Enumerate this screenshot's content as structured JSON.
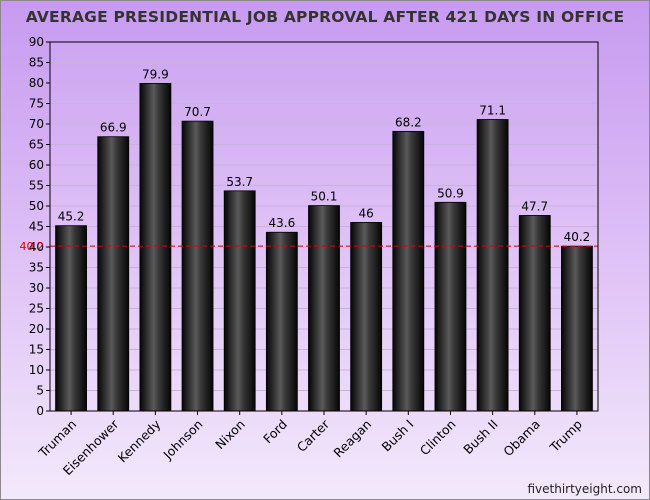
{
  "title": "AVERAGE PRESIDENTIAL JOB APPROVAL AFTER 421 DAYS IN OFFICE",
  "source": "fivethirtyeight.com",
  "colors": {
    "bar": "#1a1a1a",
    "reference_line": "#dd0000",
    "background_top": "#c79af0",
    "background_bottom": "#f3e9fb"
  },
  "chart_data": {
    "type": "bar",
    "title": "AVERAGE PRESIDENTIAL JOB APPROVAL AFTER 421 DAYS IN OFFICE",
    "xlabel": "",
    "ylabel": "",
    "ylim": [
      0,
      90
    ],
    "yticks": [
      0,
      5,
      10,
      15,
      20,
      25,
      30,
      35,
      40,
      45,
      50,
      55,
      60,
      65,
      70,
      75,
      80,
      85,
      90
    ],
    "categories": [
      "Truman",
      "Eisenhower",
      "Kennedy",
      "Johnson",
      "Nixon",
      "Ford",
      "Carter",
      "Reagan",
      "Bush I",
      "Clinton",
      "Bush II",
      "Obama",
      "Trump"
    ],
    "values": [
      45.2,
      66.9,
      79.9,
      70.7,
      53.7,
      43.6,
      50.1,
      46,
      68.2,
      50.9,
      71.1,
      47.7,
      40.2
    ],
    "data_labels": [
      "45.2",
      "66.9",
      "79.9",
      "70.7",
      "53.7",
      "43.6",
      "50.1",
      "46",
      "68.2",
      "50.9",
      "71.1",
      "47.7",
      "40.2"
    ],
    "reference_line": {
      "value": 40.2,
      "label": "40.2",
      "style": "dashed"
    },
    "grid": true,
    "legend": "none"
  }
}
